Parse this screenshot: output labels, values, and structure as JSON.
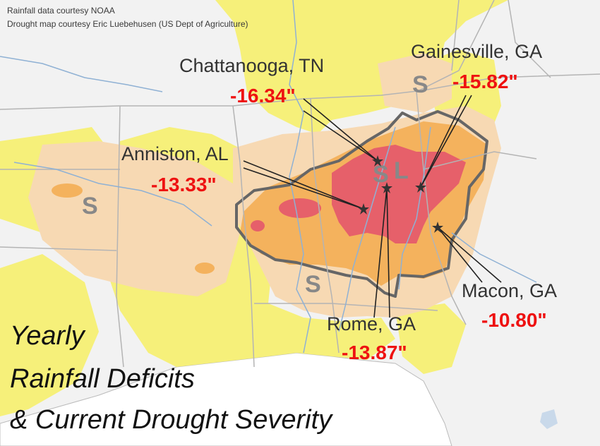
{
  "credits": {
    "rainfall": "Rainfall data courtesy NOAA",
    "drought": "Drought map courtesy Eric Luebehusen (US Dept of Agriculture)"
  },
  "title": {
    "line1": "Yearly",
    "line2": "Rainfall Deficits",
    "line3": "& Current Drought Severity"
  },
  "cities": [
    {
      "key": "chattanooga",
      "name": "Chattanooga, TN",
      "deficit": "-16.34\""
    },
    {
      "key": "gainesville",
      "name": "Gainesville, GA",
      "deficit": "-15.82\""
    },
    {
      "key": "anniston",
      "name": "Anniston, AL",
      "deficit": "-13.33\""
    },
    {
      "key": "rome",
      "name": "Rome, GA",
      "deficit": "-13.87\""
    },
    {
      "key": "macon",
      "name": "Macon, GA",
      "deficit": "-10.80\""
    }
  ],
  "impact_labels": {
    "short_term": "S",
    "long_term": "L"
  },
  "colors": {
    "base_land": "#f2f2f2",
    "abnormally_dry": "#f6f07a",
    "moderate_drought": "#f7d9b3",
    "severe_drought": "#f4b25d",
    "extreme_drought": "#e6606a",
    "outline": "#666666",
    "deficit_text": "#ee1111",
    "water": "#c9d9ea",
    "rivers": "#8fb1d4"
  }
}
